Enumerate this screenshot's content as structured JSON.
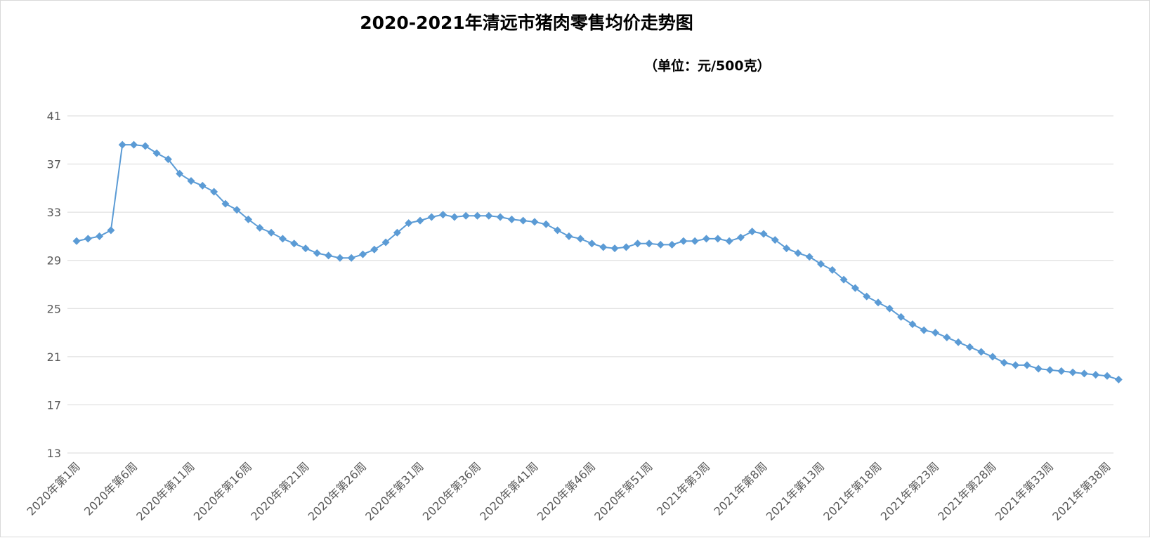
{
  "chart_data": {
    "type": "line",
    "title": "2020-2021年清远市猪肉零售均价走势图",
    "subtitle": "（单位：元/500克）",
    "xlabel": "",
    "ylabel": "",
    "ylim": [
      13,
      41
    ],
    "yticks": [
      13,
      17,
      21,
      25,
      29,
      33,
      37,
      41
    ],
    "grid": true,
    "legend": "none",
    "tick_labels": [
      "2020年第1周",
      "2020年第6周",
      "2020年第11周",
      "2020年第16周",
      "2020年第21周",
      "2020年第26周",
      "2020年第31周",
      "2020年第36周",
      "2020年第41周",
      "2020年第46周",
      "2020年第51周",
      "2021年第3周",
      "2021年第8周",
      "2021年第13周",
      "2021年第18周",
      "2021年第23周",
      "2021年第28周",
      "2021年第33周",
      "2021年第38周"
    ],
    "series": [
      {
        "color": "#5b9bd5",
        "values": [
          30.6,
          30.8,
          31.0,
          31.5,
          38.6,
          38.6,
          38.5,
          37.9,
          37.4,
          36.2,
          35.6,
          35.2,
          34.7,
          33.7,
          33.2,
          32.4,
          31.7,
          31.3,
          30.8,
          30.4,
          30.0,
          29.6,
          29.4,
          29.2,
          29.2,
          29.5,
          29.9,
          30.5,
          31.3,
          32.1,
          32.3,
          32.6,
          32.8,
          32.6,
          32.7,
          32.7,
          32.7,
          32.6,
          32.4,
          32.3,
          32.2,
          32.0,
          31.5,
          31.0,
          30.8,
          30.4,
          30.1,
          30.0,
          30.1,
          30.4,
          30.4,
          30.3,
          30.3,
          30.6,
          30.6,
          30.8,
          30.8,
          30.6,
          30.9,
          31.4,
          31.2,
          30.7,
          30.0,
          29.6,
          29.3,
          28.7,
          28.2,
          27.4,
          26.7,
          26.0,
          25.5,
          25.0,
          24.3,
          23.7,
          23.2,
          23.0,
          22.6,
          22.2,
          21.8,
          21.4,
          21.0,
          20.5,
          20.3,
          20.3,
          20.0,
          19.9,
          19.8,
          19.7,
          19.6,
          19.5,
          19.4,
          19.1
        ]
      }
    ]
  }
}
